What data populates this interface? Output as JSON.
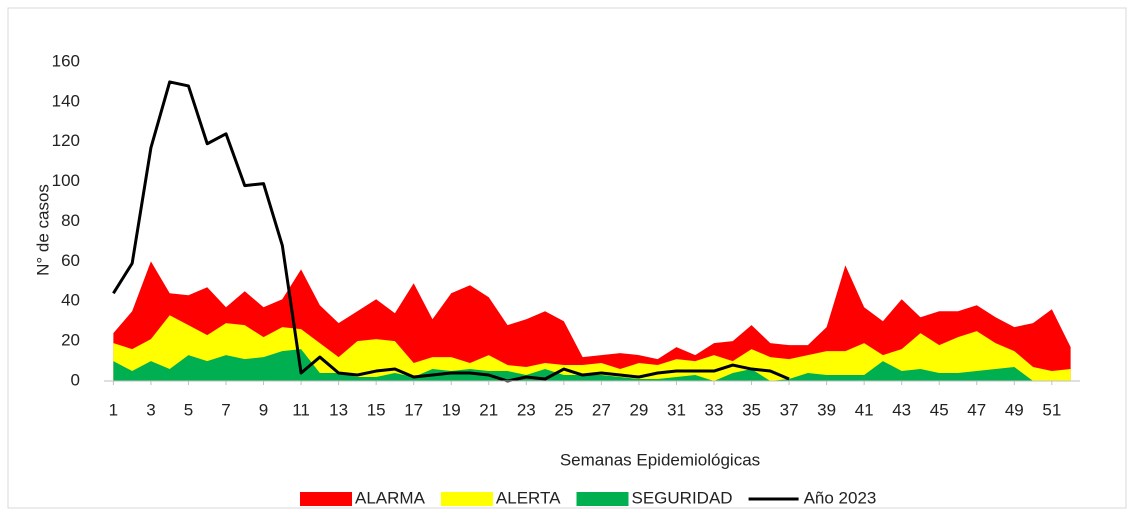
{
  "chart_data": {
    "type": "area",
    "x_label": "Semanas Epidemiológicas",
    "y_label": "N° de casos",
    "x": [
      1,
      2,
      3,
      4,
      5,
      6,
      7,
      8,
      9,
      10,
      11,
      12,
      13,
      14,
      15,
      16,
      17,
      18,
      19,
      20,
      21,
      22,
      23,
      24,
      25,
      26,
      27,
      28,
      29,
      30,
      31,
      32,
      33,
      34,
      35,
      36,
      37,
      38,
      39,
      40,
      41,
      42,
      43,
      44,
      45,
      46,
      47,
      48,
      49,
      50,
      51,
      52
    ],
    "xlim": [
      0.5,
      52.5
    ],
    "xticks": [
      1,
      3,
      5,
      7,
      9,
      11,
      13,
      15,
      17,
      19,
      21,
      23,
      25,
      27,
      29,
      31,
      33,
      35,
      37,
      39,
      41,
      43,
      45,
      47,
      49,
      51
    ],
    "ylim": [
      0,
      160
    ],
    "yticks": [
      0,
      20,
      40,
      60,
      80,
      100,
      120,
      140,
      160
    ],
    "series": [
      {
        "name": "ALARMA",
        "type": "area",
        "color": "#ff0000",
        "values": [
          24,
          35,
          60,
          44,
          43,
          47,
          37,
          45,
          37,
          41,
          56,
          38,
          29,
          35,
          41,
          34,
          49,
          31,
          44,
          48,
          42,
          28,
          31,
          35,
          30,
          12,
          13,
          14,
          13,
          11,
          17,
          13,
          19,
          20,
          28,
          19,
          18,
          18,
          27,
          58,
          37,
          30,
          41,
          32,
          35,
          35,
          38,
          32,
          27,
          29,
          36,
          17
        ]
      },
      {
        "name": "ALERTA",
        "type": "area",
        "color": "#ffff00",
        "values": [
          19,
          16,
          21,
          33,
          28,
          23,
          29,
          28,
          22,
          27,
          26,
          19,
          12,
          20,
          21,
          20,
          9,
          12,
          12,
          9,
          13,
          8,
          7,
          9,
          8,
          8,
          9,
          6,
          9,
          8,
          11,
          10,
          13,
          10,
          16,
          12,
          11,
          13,
          15,
          15,
          19,
          13,
          16,
          24,
          18,
          22,
          25,
          19,
          15,
          7,
          5,
          6
        ]
      },
      {
        "name": "SEGURIDAD",
        "type": "area",
        "color": "#00b050",
        "values": [
          10,
          5,
          10,
          6,
          13,
          10,
          13,
          11,
          12,
          15,
          16,
          4,
          4,
          2,
          2,
          4,
          2,
          6,
          5,
          6,
          5,
          5,
          3,
          6,
          3,
          3,
          3,
          2,
          1,
          1,
          2,
          3,
          0,
          4,
          6,
          0,
          1,
          4,
          3,
          3,
          3,
          10,
          5,
          6,
          4,
          4,
          5,
          6,
          7,
          0,
          0,
          0
        ]
      },
      {
        "name": "Año 2023",
        "type": "line",
        "color": "#000000",
        "values": [
          44,
          59,
          117,
          150,
          148,
          119,
          124,
          98,
          99,
          68,
          4,
          12,
          4,
          3,
          5,
          6,
          2,
          3,
          4,
          4,
          3,
          0,
          2,
          1,
          6,
          3,
          4,
          3,
          2,
          4,
          5,
          5,
          5,
          8,
          6,
          5,
          1,
          null,
          null,
          null,
          null,
          null,
          null,
          null,
          null,
          null,
          null,
          null,
          null,
          null,
          null,
          null
        ]
      }
    ]
  }
}
